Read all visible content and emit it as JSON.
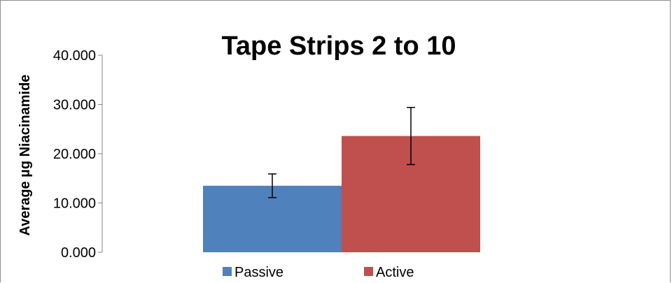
{
  "chart_data": {
    "type": "bar",
    "title": "Tape Strips 2 to 10",
    "xlabel": "",
    "ylabel": "Average µg Niacinamide",
    "categories": [
      ""
    ],
    "ylim": [
      0,
      40
    ],
    "yticks": [
      "0.000",
      "10.000",
      "20.000",
      "30.000",
      "40.000"
    ],
    "grid": false,
    "legend_position": "bottom",
    "series": [
      {
        "name": "Passive",
        "values": [
          13.5
        ],
        "error": [
          2.4
        ],
        "color": "#4f81bd"
      },
      {
        "name": "Active",
        "values": [
          23.6
        ],
        "error": [
          5.8
        ],
        "color": "#c0504d"
      }
    ]
  }
}
